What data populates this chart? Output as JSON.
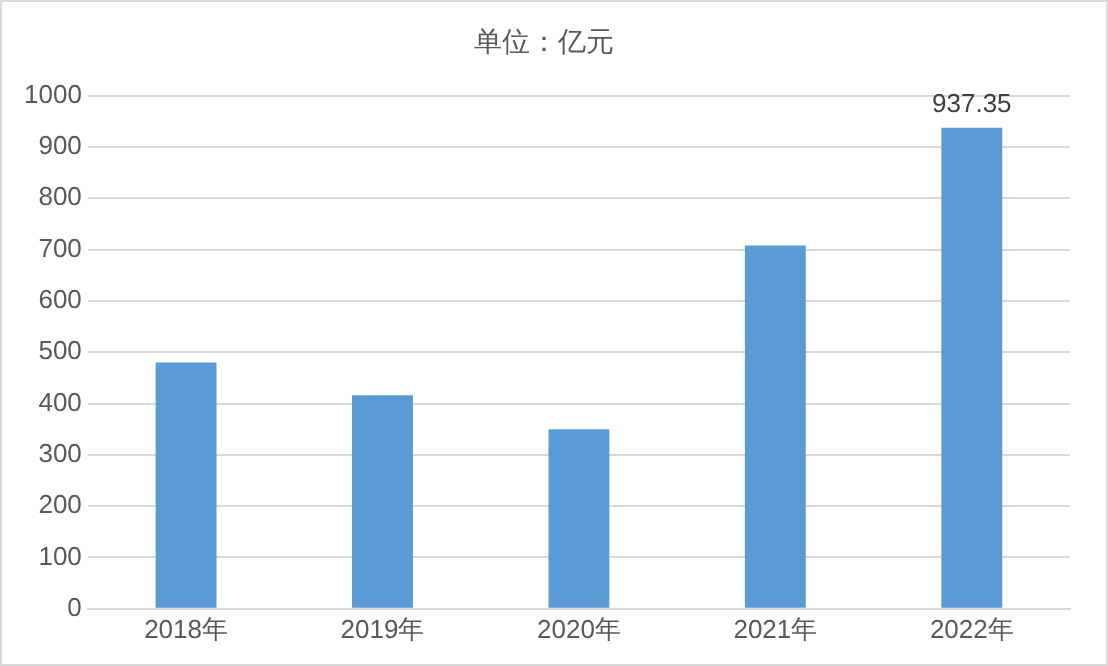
{
  "chart_data": {
    "type": "bar",
    "title": "单位：亿元",
    "categories": [
      "2018年",
      "2019年",
      "2020年",
      "2021年",
      "2022年"
    ],
    "values": [
      480,
      416,
      350,
      708,
      937.35
    ],
    "value_labels": [
      null,
      null,
      null,
      null,
      "937.35"
    ],
    "color": "#5b9bd5",
    "ylim": [
      0,
      1000
    ],
    "yticks": [
      0,
      100,
      200,
      300,
      400,
      500,
      600,
      700,
      800,
      900,
      1000
    ],
    "grid": "y",
    "legend": false
  }
}
